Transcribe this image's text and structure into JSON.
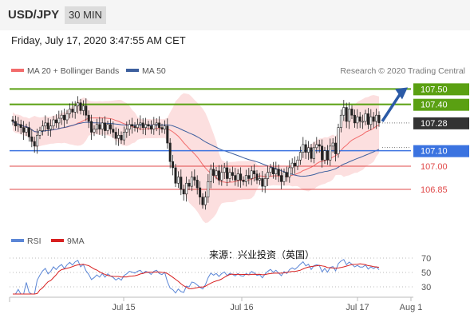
{
  "header": {
    "symbol": "USD/JPY",
    "timeframe": "30 MIN"
  },
  "timestamp": "Friday, July 17, 2020 3:47:55 AM CET",
  "legend": {
    "ma20": "MA 20 + Bollinger Bands",
    "ma50": "MA 50",
    "rsi": "RSI",
    "rsi_ma": "9MA"
  },
  "copyright": "Research © 2020 Trading Central",
  "watermark": "来源：兴业投资（英国）",
  "colors": {
    "ma20": "#f26b6b",
    "ma50": "#3d5f9e",
    "bands": "#fbd4d4",
    "target": "#5aa012",
    "support": "#3b73e0",
    "lowers": "#e04848",
    "current": "#333333",
    "rsi_line": "#5b86d6",
    "rsi_ma": "#d82020"
  },
  "chart_data": [
    {
      "type": "candlestick",
      "title": "USD/JPY",
      "timeframe": "30 MIN",
      "x_labels": [
        "Jul 15",
        "Jul 16",
        "Jul 17",
        "Aug 1"
      ],
      "ylim": [
        106.72,
        107.58
      ],
      "current_price": 107.28,
      "levels": [
        {
          "value": 107.5,
          "label": "107.50",
          "kind": "target"
        },
        {
          "value": 107.4,
          "label": "107.40",
          "kind": "resistance"
        },
        {
          "value": 107.28,
          "label": "107.28",
          "kind": "current"
        },
        {
          "value": 107.1,
          "label": "107.10",
          "kind": "support"
        },
        {
          "value": 107.0,
          "label": "107.00",
          "kind": "support2"
        },
        {
          "value": 106.85,
          "label": "106.85",
          "kind": "support3"
        }
      ],
      "projection": {
        "from": 107.28,
        "to": 107.5,
        "direction": "up"
      },
      "close": [
        107.29,
        107.26,
        107.27,
        107.25,
        107.22,
        107.25,
        107.19,
        107.16,
        107.13,
        107.2,
        107.23,
        107.26,
        107.28,
        107.24,
        107.26,
        107.3,
        107.28,
        107.31,
        107.33,
        107.3,
        107.34,
        107.37,
        107.35,
        107.39,
        107.41,
        107.36,
        107.39,
        107.33,
        107.29,
        107.22,
        107.24,
        107.27,
        107.24,
        107.28,
        107.23,
        107.27,
        107.24,
        107.22,
        107.18,
        107.2,
        107.17,
        107.22,
        107.24,
        107.27,
        107.26,
        107.25,
        107.27,
        107.28,
        107.25,
        107.27,
        107.26,
        107.24,
        107.27,
        107.28,
        107.25,
        107.24,
        107.26,
        107.15,
        107.03,
        106.99,
        106.89,
        106.93,
        106.85,
        106.82,
        106.89,
        106.87,
        106.93,
        106.91,
        106.86,
        106.8,
        106.75,
        106.8,
        106.9,
        106.98,
        106.94,
        106.97,
        106.91,
        106.96,
        106.99,
        106.92,
        106.96,
        106.94,
        106.91,
        106.95,
        106.91,
        106.9,
        106.94,
        106.92,
        106.97,
        106.95,
        106.91,
        106.92,
        106.87,
        106.92,
        106.96,
        106.99,
        106.95,
        106.98,
        106.94,
        106.9,
        106.96,
        106.93,
        106.99,
        107.02,
        107.0,
        107.04,
        107.09,
        107.14,
        107.09,
        107.12,
        107.05,
        107.12,
        107.14,
        107.13,
        107.04,
        107.1,
        107.04,
        107.13,
        107.15,
        107.08,
        107.25,
        107.33,
        107.38,
        107.29,
        107.37,
        107.33,
        107.28,
        107.32,
        107.29,
        107.29,
        107.34,
        107.27,
        107.32,
        107.29,
        107.33,
        107.28
      ],
      "rsi": {
        "ticks": [
          70,
          50,
          30
        ]
      }
    }
  ]
}
